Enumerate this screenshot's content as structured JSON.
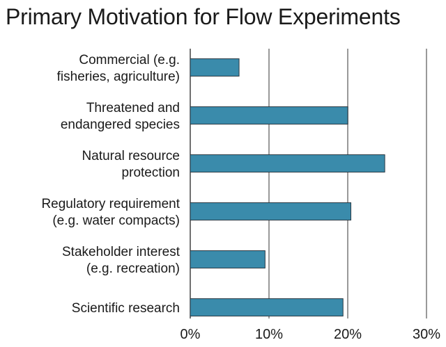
{
  "chart_data": {
    "type": "bar",
    "orientation": "horizontal",
    "title": "Primary Motivation for Flow Experiments",
    "xlabel": "",
    "ylabel": "",
    "categories": [
      [
        "Commercial (e.g.",
        "fisheries, agriculture)"
      ],
      [
        "Threatened and",
        "endangered species"
      ],
      [
        "Natural resource",
        "protection"
      ],
      [
        "Regulatory requirement",
        "(e.g. water compacts)"
      ],
      [
        "Stakeholder interest",
        "(e.g. recreation)"
      ],
      [
        "Scientific research"
      ]
    ],
    "values": [
      6.2,
      20.0,
      24.7,
      20.4,
      9.5,
      19.4
    ],
    "xlim": [
      0,
      30
    ],
    "ticks": [
      0,
      10,
      20,
      30
    ],
    "tick_labels": [
      "0%",
      "10%",
      "20%",
      "30%"
    ],
    "grid": true,
    "legend": "none",
    "colors": {
      "bar": "#3a8bab",
      "bar_edge": "#2a3a44",
      "grid": "#999999"
    }
  }
}
